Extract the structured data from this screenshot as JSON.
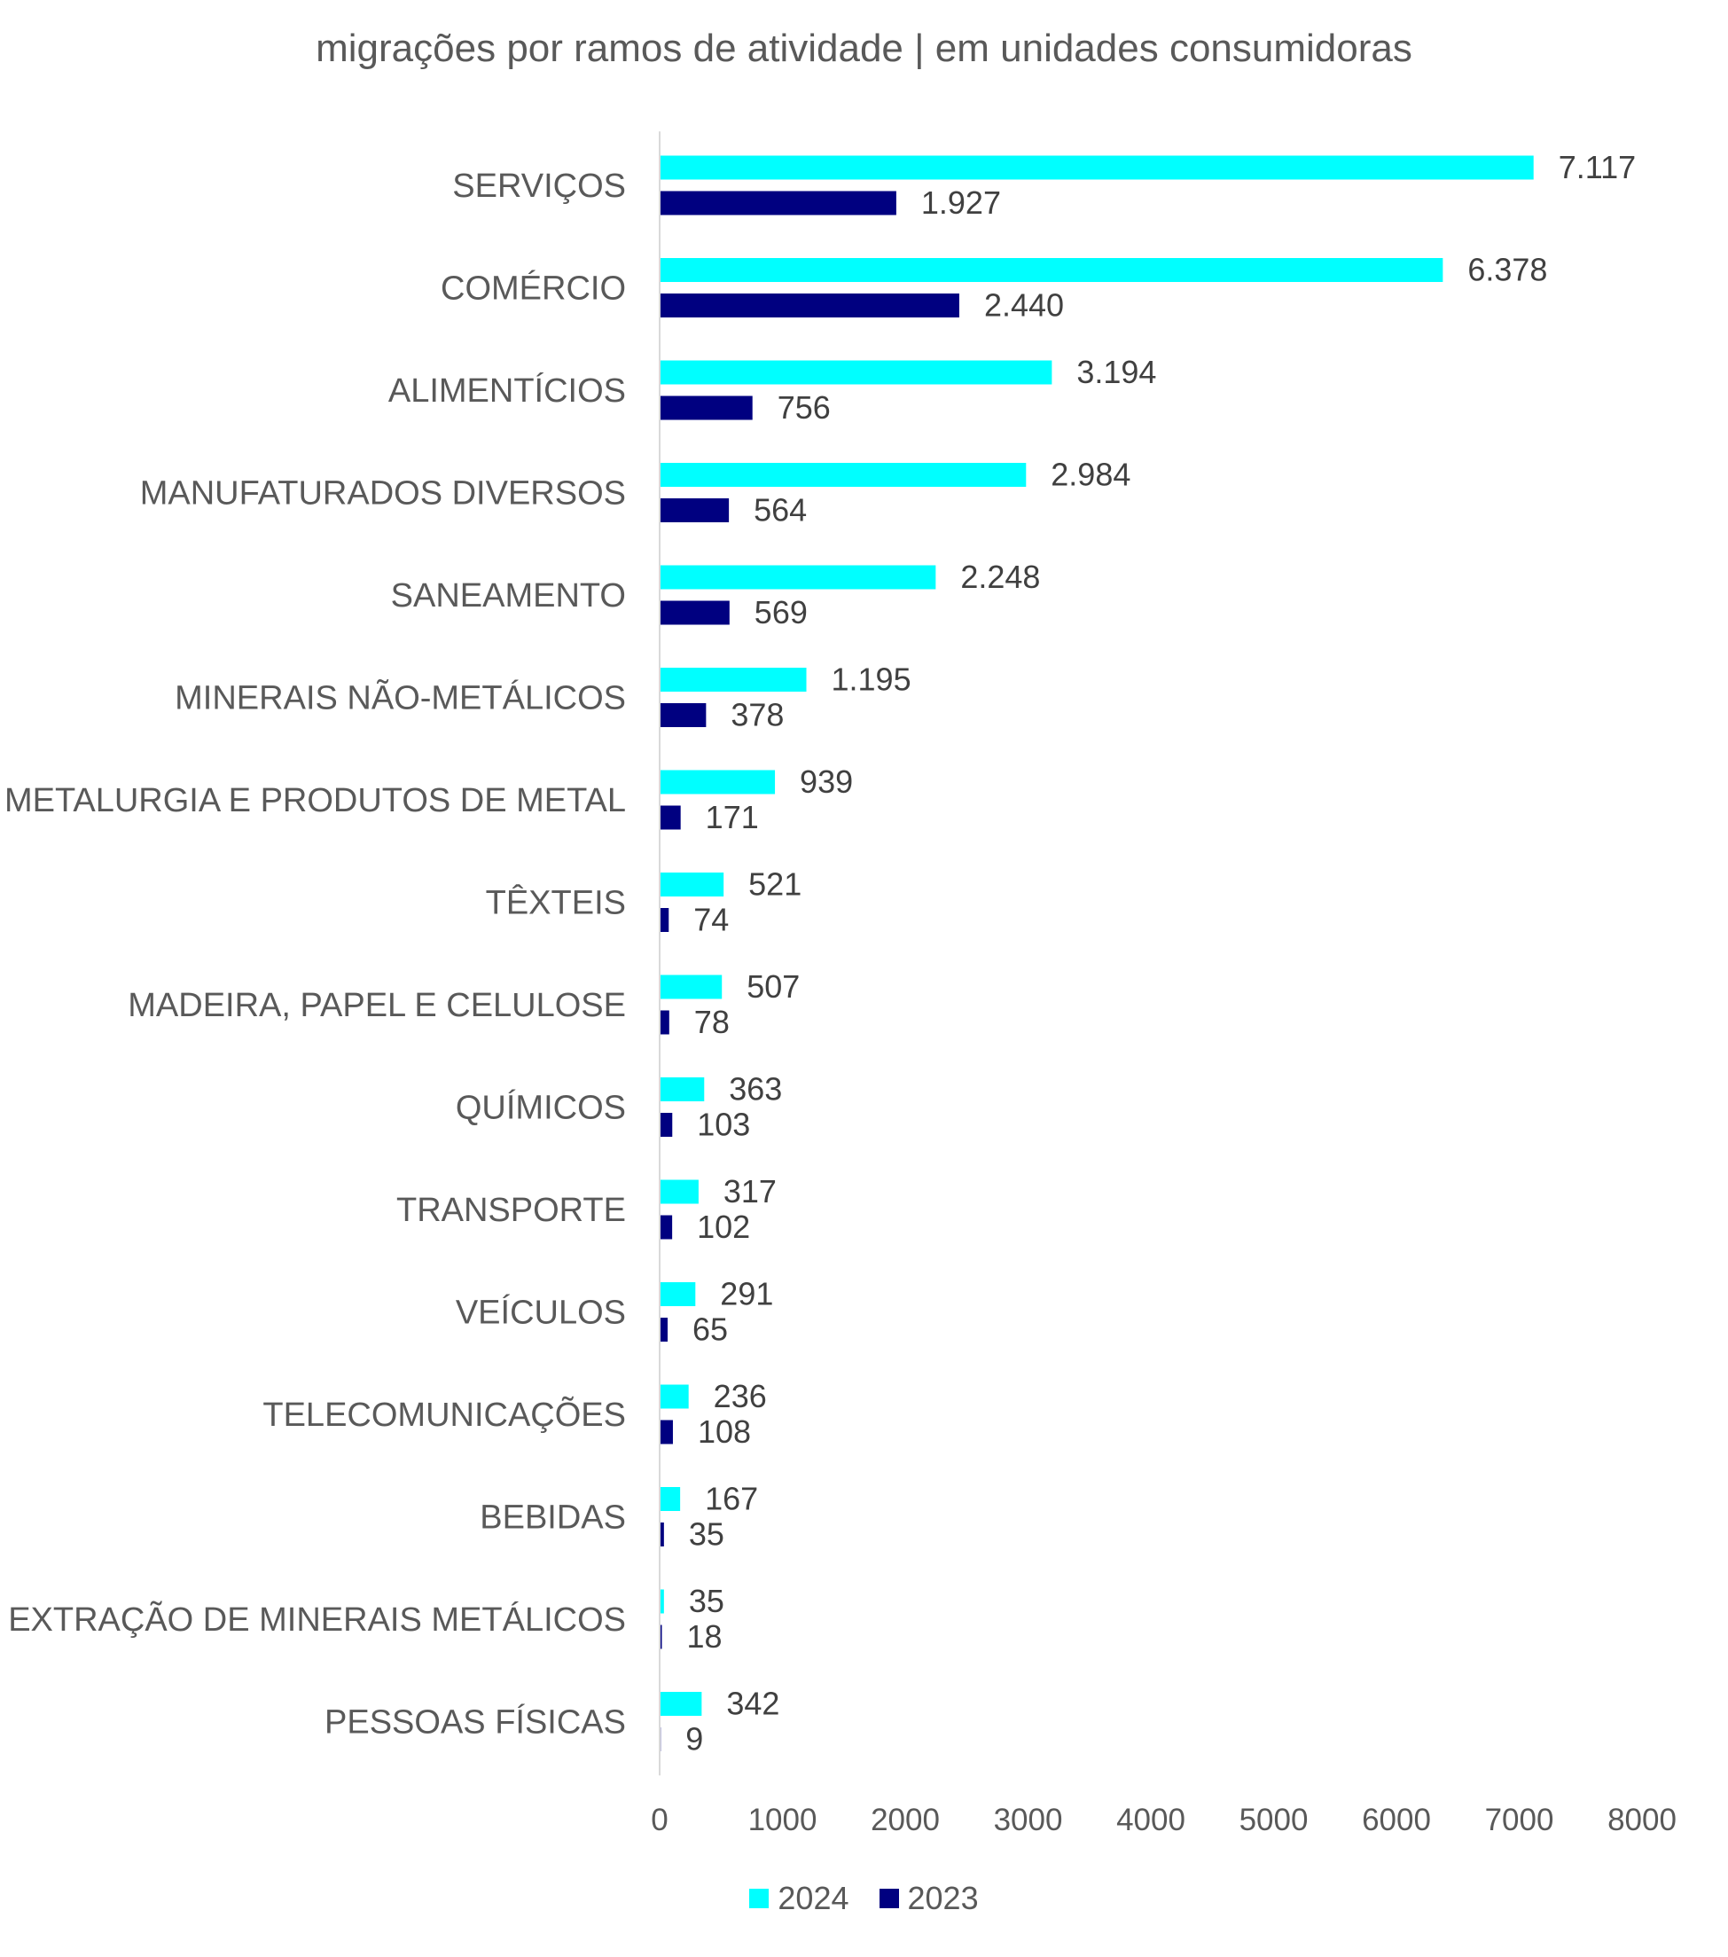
{
  "chart_data": {
    "type": "bar",
    "orientation": "horizontal",
    "title": "migrações por ramos de atividade | em unidades consumidoras",
    "categories": [
      "SERVIÇOS",
      "COMÉRCIO",
      "ALIMENTÍCIOS",
      "MANUFATURADOS DIVERSOS",
      "SANEAMENTO",
      "MINERAIS NÃO-METÁLICOS",
      "METALURGIA E PRODUTOS DE METAL",
      "TÊXTEIS",
      "MADEIRA, PAPEL E CELULOSE",
      "QUÍMICOS",
      "TRANSPORTE",
      "VEÍCULOS",
      "TELECOMUNICAÇÕES",
      "BEBIDAS",
      "EXTRAÇÃO DE MINERAIS METÁLICOS",
      "PESSOAS FÍSICAS"
    ],
    "series": [
      {
        "name": "2024",
        "color": "#00FFFF",
        "values": [
          7117,
          6378,
          3194,
          2984,
          2248,
          1195,
          939,
          521,
          507,
          363,
          317,
          291,
          236,
          167,
          35,
          342
        ],
        "labels": [
          "7.117",
          "6.378",
          "3.194",
          "2.984",
          "2.248",
          "1.195",
          "939",
          "521",
          "507",
          "363",
          "317",
          "291",
          "236",
          "167",
          "35",
          "342"
        ]
      },
      {
        "name": "2023",
        "color": "#000080",
        "values": [
          1927,
          2440,
          756,
          564,
          569,
          378,
          171,
          74,
          78,
          103,
          102,
          65,
          108,
          35,
          18,
          9
        ],
        "labels": [
          "1.927",
          "2.440",
          "756",
          "564",
          "569",
          "378",
          "171",
          "74",
          "78",
          "103",
          "102",
          "65",
          "108",
          "35",
          "18",
          "9"
        ]
      }
    ],
    "xlim": [
      0,
      8000
    ],
    "xticks": [
      0,
      1000,
      2000,
      3000,
      4000,
      5000,
      6000,
      7000,
      8000
    ],
    "xtick_labels": [
      "0",
      "1000",
      "2000",
      "3000",
      "4000",
      "5000",
      "6000",
      "7000",
      "8000"
    ],
    "grid": false,
    "legend_position": "bottom"
  }
}
